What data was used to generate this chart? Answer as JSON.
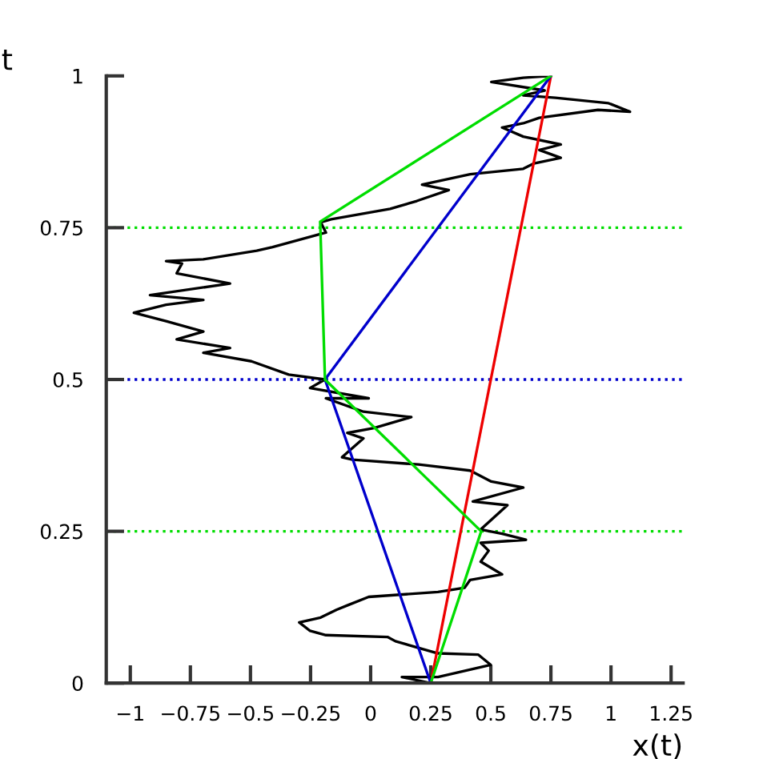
{
  "chart_data": {
    "type": "line",
    "xlabel": "x(t)",
    "ylabel": "t",
    "xlim": [
      -1.1,
      1.3
    ],
    "ylim": [
      0,
      1
    ],
    "xticks": [
      {
        "value": -1,
        "label": "−1"
      },
      {
        "value": -0.75,
        "label": "−0.75"
      },
      {
        "value": -0.5,
        "label": "−0.5"
      },
      {
        "value": -0.25,
        "label": "−0.25"
      },
      0,
      0.25,
      0.5,
      0.75,
      1,
      1.25
    ],
    "yticks": [
      0,
      0.25,
      0.5,
      0.75,
      1
    ],
    "grid": false,
    "legend": false,
    "marker": "none",
    "line_style": "solid",
    "series": [
      {
        "color": "#000000",
        "x": [
          0.25,
          0.13,
          0.28,
          0.5,
          0.447,
          0.28,
          0.103,
          0.07,
          -0.186,
          -0.252,
          -0.297,
          -0.208,
          -0.141,
          -0.097,
          -0.008,
          0.28,
          0.391,
          0.414,
          0.547,
          0.458,
          0.491,
          0.458,
          0.646,
          0.547,
          0.458,
          0.513,
          0.569,
          0.425,
          0.635,
          0.502,
          0.414,
          0.2,
          -0.075,
          -0.119,
          -0.03,
          -0.097,
          0.014,
          0.169,
          -0.03,
          -0.186,
          -0.008,
          -0.252,
          -0.19,
          -0.341,
          -0.496,
          -0.696,
          -0.585,
          -0.807,
          -0.696,
          -0.851,
          -0.985,
          -0.851,
          -0.696,
          -0.918,
          -0.585,
          -0.807,
          -0.785,
          -0.851,
          -0.696,
          -0.474,
          -0.408,
          -0.186,
          -0.208,
          -0.164,
          0.081,
          0.192,
          0.325,
          0.214,
          0.414,
          0.635,
          0.68,
          0.791,
          0.702,
          0.791,
          0.635,
          0.547,
          0.635,
          0.702,
          0.946,
          1.079,
          0.99,
          0.769,
          0.635,
          0.724,
          0.502,
          0.635,
          0.75
        ],
        "values": [
          0,
          0.01,
          0.01,
          0.03,
          0.047,
          0.049,
          0.069,
          0.076,
          0.079,
          0.086,
          0.1,
          0.108,
          0.121,
          0.128,
          0.142,
          0.15,
          0.157,
          0.17,
          0.179,
          0.2,
          0.218,
          0.231,
          0.236,
          0.246,
          0.253,
          0.273,
          0.293,
          0.299,
          0.322,
          0.332,
          0.35,
          0.36,
          0.368,
          0.372,
          0.403,
          0.412,
          0.42,
          0.438,
          0.447,
          0.469,
          0.469,
          0.486,
          0.5,
          0.508,
          0.53,
          0.544,
          0.552,
          0.566,
          0.579,
          0.596,
          0.61,
          0.623,
          0.631,
          0.639,
          0.658,
          0.675,
          0.691,
          0.695,
          0.698,
          0.712,
          0.718,
          0.742,
          0.759,
          0.764,
          0.781,
          0.794,
          0.812,
          0.821,
          0.838,
          0.847,
          0.856,
          0.865,
          0.878,
          0.887,
          0.9,
          0.915,
          0.922,
          0.931,
          0.944,
          0.941,
          0.955,
          0.964,
          0.968,
          0.976,
          0.99,
          0.997,
          1.0
        ]
      },
      {
        "color": "#ee0000",
        "x": [
          0.25,
          0.75
        ],
        "values": [
          0,
          1
        ]
      },
      {
        "color": "#0000cc",
        "x": [
          0.25,
          -0.19,
          0.75
        ],
        "values": [
          0,
          0.5,
          1
        ]
      },
      {
        "color": "#00dd00",
        "x": [
          0.25,
          0.46,
          -0.19,
          -0.21,
          0.75
        ],
        "values": [
          0,
          0.25,
          0.5,
          0.76,
          1
        ]
      }
    ],
    "ref_lines": [
      {
        "axis": "y",
        "value": 0.25,
        "color": "#00dd00",
        "line_style": "dotted"
      },
      {
        "axis": "y",
        "value": 0.5,
        "color": "#0000cc",
        "line_style": "dotted"
      },
      {
        "axis": "y",
        "value": 0.75,
        "color": "#00dd00",
        "line_style": "dotted"
      }
    ]
  }
}
